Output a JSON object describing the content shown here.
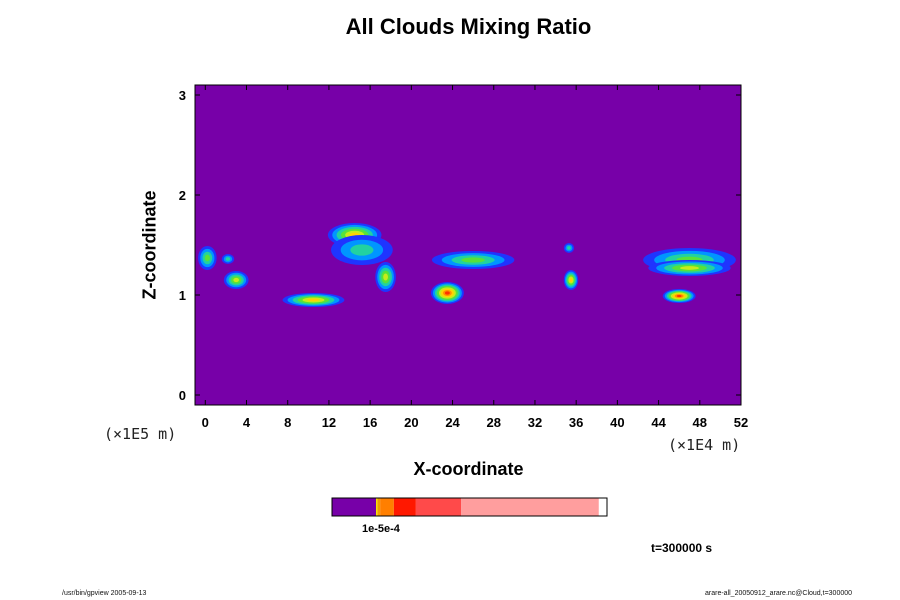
{
  "chart_data": {
    "type": "heatmap",
    "title": "All Clouds Mixing Ratio",
    "xlabel": "X-coordinate",
    "ylabel": "Z-coordinate",
    "x_scale_label": "(×1E4 m)",
    "y_scale_label": "(×1E5 m)",
    "xlim": [
      -1,
      52
    ],
    "ylim": [
      -0.1,
      3.1
    ],
    "x_ticks": [
      "0",
      "4",
      "8",
      "12",
      "16",
      "20",
      "24",
      "28",
      "32",
      "36",
      "40",
      "44",
      "48",
      "52"
    ],
    "y_ticks": [
      "0",
      "1",
      "2",
      "3"
    ],
    "background_color": "#7700a8",
    "colorbar": {
      "segments": [
        {
          "color": "#7700a8",
          "width": 0.16
        },
        {
          "color": "#f5e400",
          "width": 0.005
        },
        {
          "color": "#f0a000",
          "width": 0.01
        },
        {
          "color": "#ff7f00",
          "width": 0.05
        },
        {
          "color": "#ff1800",
          "width": 0.08
        },
        {
          "color": "#ff4a4a",
          "width": 0.165
        },
        {
          "color": "#ff9e9e",
          "width": 0.5
        }
      ],
      "tick_label": "1e-5e-4"
    },
    "cloud_features": [
      {
        "x": 0.2,
        "z": 1.37,
        "rx": 0.9,
        "rz": 0.12,
        "level": 3
      },
      {
        "x": 2.2,
        "z": 1.36,
        "rx": 0.6,
        "rz": 0.05,
        "level": 2
      },
      {
        "x": 3.0,
        "z": 1.15,
        "rx": 1.2,
        "rz": 0.09,
        "level": 4
      },
      {
        "x": 14.5,
        "z": 1.6,
        "rx": 2.6,
        "rz": 0.12,
        "level": 5
      },
      {
        "x": 15.2,
        "z": 1.45,
        "rx": 3.0,
        "rz": 0.15,
        "level": 2
      },
      {
        "x": 17.5,
        "z": 1.18,
        "rx": 1.0,
        "rz": 0.15,
        "level": 4
      },
      {
        "x": 10.5,
        "z": 0.95,
        "rx": 3.0,
        "rz": 0.07,
        "level": 5
      },
      {
        "x": 23.5,
        "z": 1.02,
        "rx": 1.6,
        "rz": 0.11,
        "level": 7
      },
      {
        "x": 26.0,
        "z": 1.35,
        "rx": 4.0,
        "rz": 0.09,
        "level": 3
      },
      {
        "x": 35.5,
        "z": 1.15,
        "rx": 0.7,
        "rz": 0.1,
        "level": 5
      },
      {
        "x": 35.3,
        "z": 1.47,
        "rx": 0.5,
        "rz": 0.05,
        "level": 2
      },
      {
        "x": 47.0,
        "z": 1.35,
        "rx": 4.5,
        "rz": 0.12,
        "level": 3
      },
      {
        "x": 47.0,
        "z": 1.27,
        "rx": 4.0,
        "rz": 0.08,
        "level": 4
      },
      {
        "x": 46.0,
        "z": 0.99,
        "rx": 1.6,
        "rz": 0.07,
        "level": 7
      }
    ]
  },
  "annotations": {
    "time": "t=300000 s",
    "footer_left": "/usr/bin/gpview 2005-09-13",
    "footer_right": "arare-all_20050912_arare.nc@Cloud,t=300000"
  }
}
